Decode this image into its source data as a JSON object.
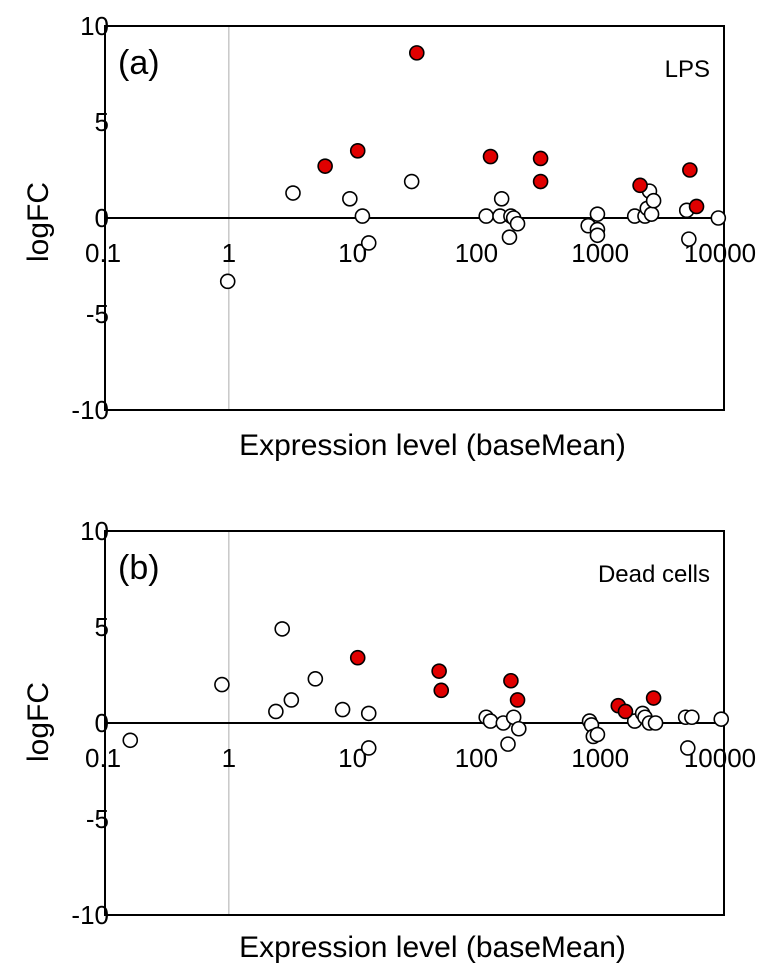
{
  "chart_data": [
    {
      "type": "scatter",
      "panel_label": "(a)",
      "annotation": "LPS",
      "xlabel": "Expression level (baseMean)",
      "ylabel": "logFC",
      "x_scale": "log",
      "xlim": [
        0.1,
        10000
      ],
      "ylim": [
        -10,
        10
      ],
      "xticks": [
        "0.1",
        "1",
        "10",
        "100",
        "1000",
        "10000"
      ],
      "yticks": [
        "10",
        "5",
        "0",
        "-5",
        "-10"
      ],
      "colors": {
        "significant": "#e00000",
        "not_significant": "#ffffff"
      },
      "series": [
        {
          "name": "",
          "style": "significant",
          "points": [
            [
              6,
              2.7
            ],
            [
              11,
              3.5
            ],
            [
              33,
              8.6
            ],
            [
              130,
              3.2
            ],
            [
              330,
              3.1
            ],
            [
              330,
              1.9
            ],
            [
              2100,
              1.7
            ],
            [
              5300,
              2.5
            ],
            [
              6000,
              0.6
            ]
          ]
        },
        {
          "name": "",
          "style": "not_significant",
          "points": [
            [
              0.98,
              -3.3
            ],
            [
              3.3,
              1.3
            ],
            [
              9.5,
              1.0
            ],
            [
              12,
              0.1
            ],
            [
              13.5,
              -1.3
            ],
            [
              30,
              1.9
            ],
            [
              120,
              0.1
            ],
            [
              155,
              0.1
            ],
            [
              160,
              1.0
            ],
            [
              190,
              0.1
            ],
            [
              185,
              -1.0
            ],
            [
              200,
              0.0
            ],
            [
              215,
              -0.3
            ],
            [
              800,
              -0.4
            ],
            [
              950,
              0.2
            ],
            [
              950,
              -0.6
            ],
            [
              950,
              -0.9
            ],
            [
              1900,
              0.1
            ],
            [
              2300,
              0.1
            ],
            [
              2400,
              0.5
            ],
            [
              2500,
              1.4
            ],
            [
              2600,
              0.2
            ],
            [
              2700,
              0.9
            ],
            [
              5000,
              0.4
            ],
            [
              5200,
              -1.1
            ],
            [
              9000,
              0.0
            ]
          ]
        }
      ]
    },
    {
      "type": "scatter",
      "panel_label": "(b)",
      "annotation": "Dead cells",
      "xlabel": "Expression level (baseMean)",
      "ylabel": "logFC",
      "x_scale": "log",
      "xlim": [
        0.1,
        10000
      ],
      "ylim": [
        -10,
        10
      ],
      "xticks": [
        "0.1",
        "1",
        "10",
        "100",
        "1000",
        "10000"
      ],
      "yticks": [
        "10",
        "5",
        "0",
        "-5",
        "-10"
      ],
      "colors": {
        "significant": "#e00000",
        "not_significant": "#ffffff"
      },
      "series": [
        {
          "name": "",
          "style": "significant",
          "points": [
            [
              11,
              3.4
            ],
            [
              50,
              2.7
            ],
            [
              52,
              1.7
            ],
            [
              190,
              2.2
            ],
            [
              215,
              1.2
            ],
            [
              1400,
              0.9
            ],
            [
              1600,
              0.6
            ],
            [
              2700,
              1.3
            ]
          ]
        },
        {
          "name": "",
          "style": "not_significant",
          "points": [
            [
              0.16,
              -0.9
            ],
            [
              0.88,
              2.0
            ],
            [
              2.4,
              0.6
            ],
            [
              2.7,
              4.9
            ],
            [
              3.2,
              1.2
            ],
            [
              5,
              2.3
            ],
            [
              8.3,
              0.7
            ],
            [
              13.5,
              0.5
            ],
            [
              13.5,
              -1.3
            ],
            [
              120,
              0.3
            ],
            [
              130,
              0.1
            ],
            [
              165,
              0.0
            ],
            [
              180,
              -1.1
            ],
            [
              200,
              0.3
            ],
            [
              220,
              -0.3
            ],
            [
              820,
              0.1
            ],
            [
              850,
              -0.1
            ],
            [
              880,
              -0.7
            ],
            [
              950,
              -0.6
            ],
            [
              1900,
              0.1
            ],
            [
              2200,
              0.5
            ],
            [
              2300,
              0.3
            ],
            [
              2500,
              0.0
            ],
            [
              2800,
              0.0
            ],
            [
              4900,
              0.3
            ],
            [
              5100,
              -1.3
            ],
            [
              5500,
              0.3
            ],
            [
              9500,
              0.2
            ]
          ]
        }
      ]
    }
  ]
}
